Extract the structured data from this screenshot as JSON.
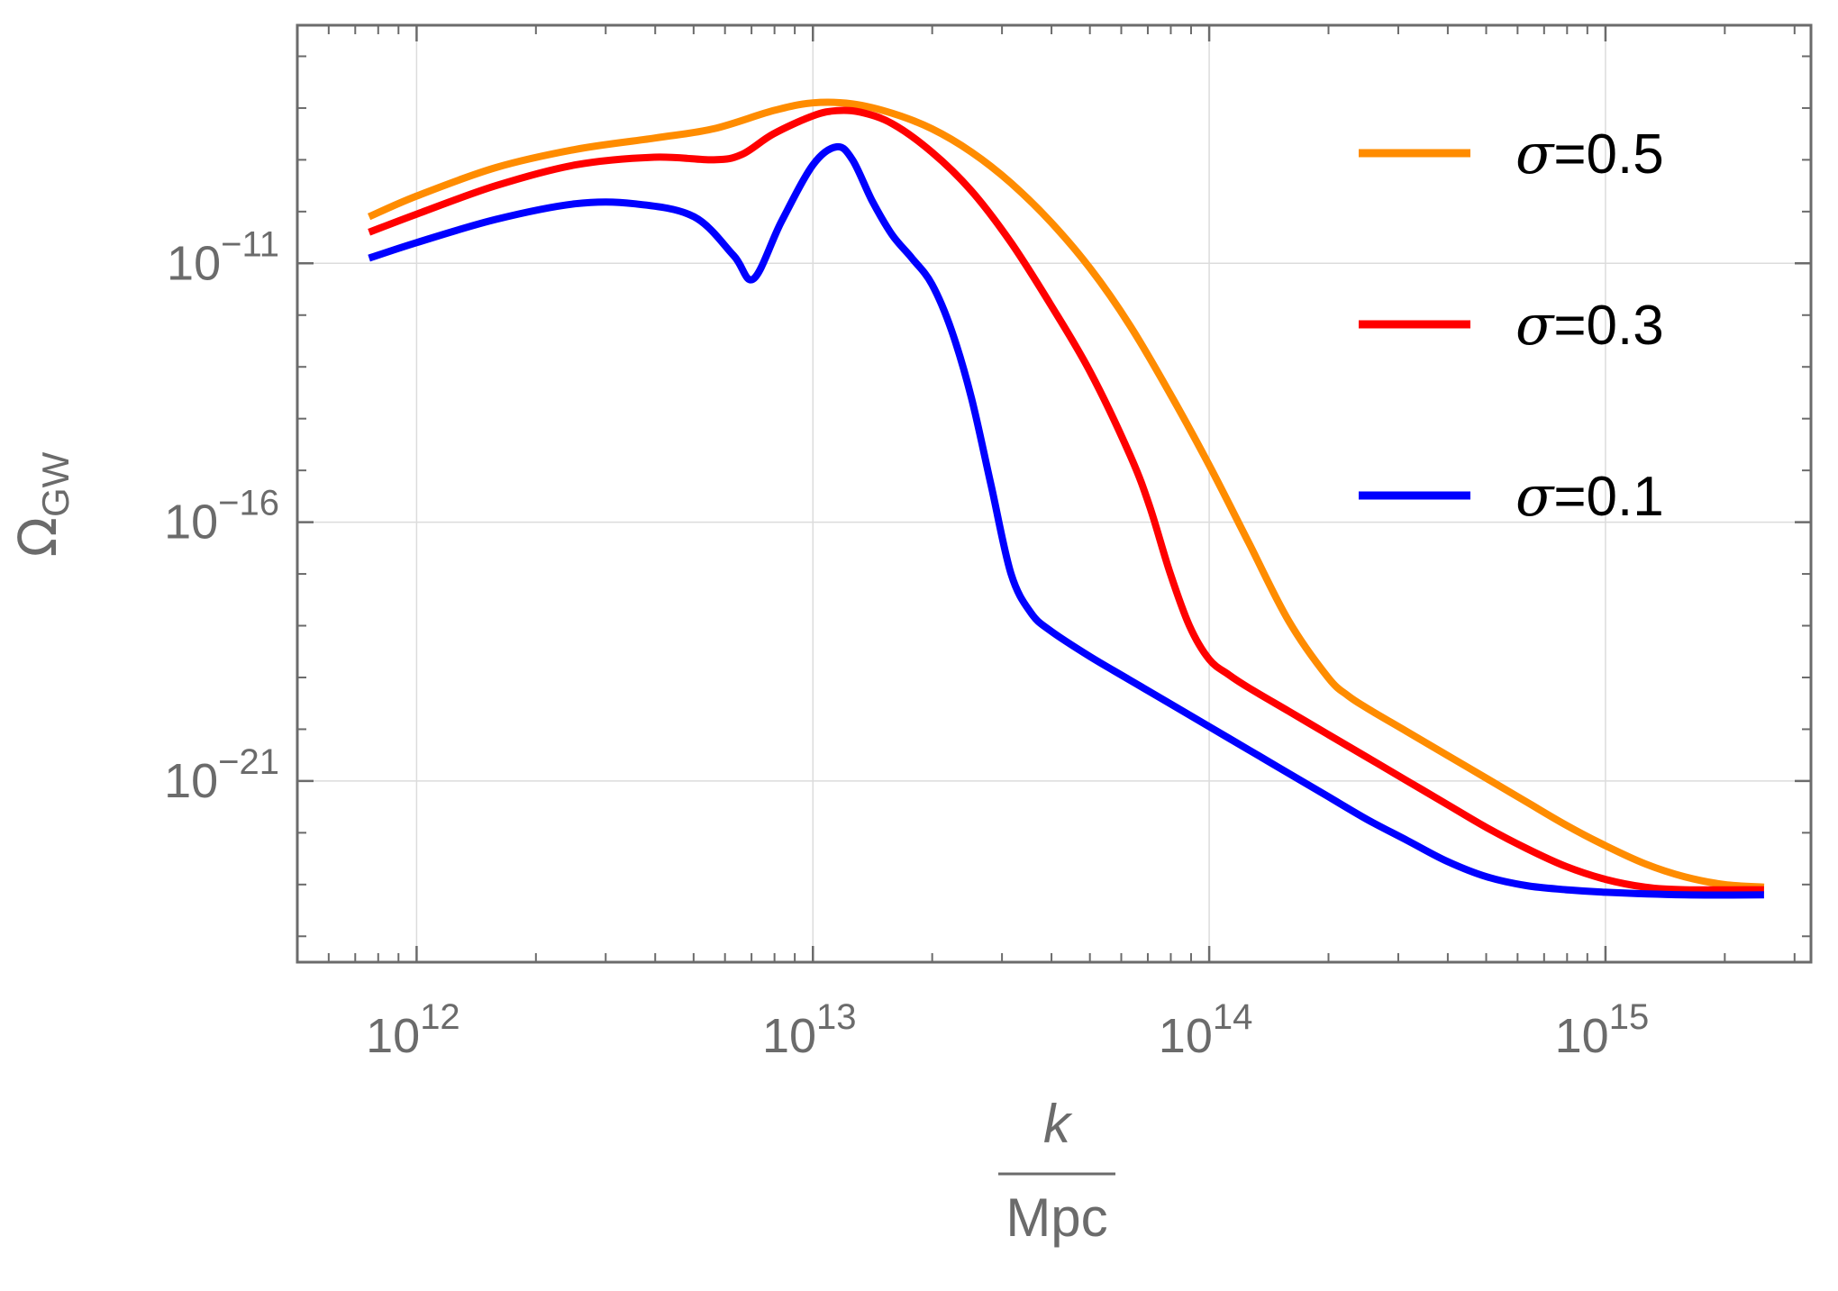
{
  "chart_data": {
    "type": "line",
    "title": "",
    "xscale": "log",
    "yscale": "log",
    "xlim": [
      500000000000.0,
      3300000000000000.0
    ],
    "ylim_log10": [
      -24.5,
      -6.4
    ],
    "xlabel": {
      "numerator": "k",
      "denominator": "Mpc"
    },
    "ylabel": {
      "main": "Ω",
      "subscript": "GW"
    },
    "x_ticks": [
      {
        "base": "10",
        "exp": "12",
        "log10": 12
      },
      {
        "base": "10",
        "exp": "13",
        "log10": 13
      },
      {
        "base": "10",
        "exp": "14",
        "log10": 14
      },
      {
        "base": "10",
        "exp": "15",
        "log10": 15
      }
    ],
    "y_ticks": [
      {
        "base": "10",
        "exp": "−11",
        "log10": -11
      },
      {
        "base": "10",
        "exp": "−16",
        "log10": -16
      },
      {
        "base": "10",
        "exp": "−21",
        "log10": -21
      }
    ],
    "grid": true,
    "legend": {
      "placement": "top-right",
      "entries": [
        {
          "symbol": "σ",
          "label": "=0.5",
          "color": "#ff8c00"
        },
        {
          "symbol": "σ",
          "label": "=0.3",
          "color": "#ff0000"
        },
        {
          "symbol": "σ",
          "label": "=0.1",
          "color": "#0000ff"
        }
      ]
    },
    "series": [
      {
        "name": "σ=0.5",
        "color": "#ff8c00",
        "points": [
          [
            11.88,
            -10.1
          ],
          [
            12.0,
            -9.7
          ],
          [
            12.2,
            -9.15
          ],
          [
            12.4,
            -8.8
          ],
          [
            12.6,
            -8.58
          ],
          [
            12.75,
            -8.4
          ],
          [
            12.9,
            -8.05
          ],
          [
            13.0,
            -7.9
          ],
          [
            13.1,
            -7.92
          ],
          [
            13.2,
            -8.1
          ],
          [
            13.3,
            -8.4
          ],
          [
            13.4,
            -8.85
          ],
          [
            13.5,
            -9.45
          ],
          [
            13.6,
            -10.2
          ],
          [
            13.7,
            -11.1
          ],
          [
            13.8,
            -12.2
          ],
          [
            13.9,
            -13.5
          ],
          [
            14.0,
            -14.9
          ],
          [
            14.1,
            -16.4
          ],
          [
            14.2,
            -17.9
          ],
          [
            14.3,
            -19.0
          ],
          [
            14.35,
            -19.35
          ],
          [
            14.4,
            -19.6
          ],
          [
            14.5,
            -20.05
          ],
          [
            14.6,
            -20.5
          ],
          [
            14.7,
            -20.95
          ],
          [
            14.8,
            -21.4
          ],
          [
            14.9,
            -21.85
          ],
          [
            15.0,
            -22.25
          ],
          [
            15.1,
            -22.6
          ],
          [
            15.2,
            -22.85
          ],
          [
            15.3,
            -23.0
          ],
          [
            15.4,
            -23.05
          ]
        ]
      },
      {
        "name": "σ=0.3",
        "color": "#ff0000",
        "points": [
          [
            11.88,
            -10.4
          ],
          [
            12.0,
            -10.05
          ],
          [
            12.2,
            -9.5
          ],
          [
            12.4,
            -9.1
          ],
          [
            12.6,
            -8.95
          ],
          [
            12.75,
            -9.0
          ],
          [
            12.82,
            -8.9
          ],
          [
            12.9,
            -8.5
          ],
          [
            13.0,
            -8.15
          ],
          [
            13.06,
            -8.05
          ],
          [
            13.12,
            -8.08
          ],
          [
            13.2,
            -8.3
          ],
          [
            13.3,
            -8.85
          ],
          [
            13.4,
            -9.6
          ],
          [
            13.5,
            -10.6
          ],
          [
            13.6,
            -11.8
          ],
          [
            13.7,
            -13.1
          ],
          [
            13.8,
            -14.7
          ],
          [
            13.85,
            -15.7
          ],
          [
            13.9,
            -16.95
          ],
          [
            13.95,
            -18.0
          ],
          [
            14.0,
            -18.65
          ],
          [
            14.05,
            -18.95
          ],
          [
            14.1,
            -19.2
          ],
          [
            14.2,
            -19.65
          ],
          [
            14.3,
            -20.1
          ],
          [
            14.4,
            -20.55
          ],
          [
            14.5,
            -21.0
          ],
          [
            14.6,
            -21.45
          ],
          [
            14.7,
            -21.9
          ],
          [
            14.8,
            -22.3
          ],
          [
            14.9,
            -22.65
          ],
          [
            15.0,
            -22.9
          ],
          [
            15.1,
            -23.05
          ],
          [
            15.2,
            -23.1
          ],
          [
            15.4,
            -23.1
          ]
        ]
      },
      {
        "name": "σ=0.1",
        "color": "#0000ff",
        "points": [
          [
            11.88,
            -10.9
          ],
          [
            12.0,
            -10.6
          ],
          [
            12.2,
            -10.15
          ],
          [
            12.4,
            -9.85
          ],
          [
            12.55,
            -9.85
          ],
          [
            12.7,
            -10.1
          ],
          [
            12.8,
            -10.85
          ],
          [
            12.85,
            -11.3
          ],
          [
            12.92,
            -10.2
          ],
          [
            13.0,
            -9.1
          ],
          [
            13.06,
            -8.75
          ],
          [
            13.1,
            -9.0
          ],
          [
            13.15,
            -9.8
          ],
          [
            13.2,
            -10.45
          ],
          [
            13.25,
            -10.9
          ],
          [
            13.3,
            -11.4
          ],
          [
            13.35,
            -12.3
          ],
          [
            13.4,
            -13.6
          ],
          [
            13.45,
            -15.3
          ],
          [
            13.5,
            -17.0
          ],
          [
            13.55,
            -17.75
          ],
          [
            13.6,
            -18.1
          ],
          [
            13.7,
            -18.6
          ],
          [
            13.8,
            -19.05
          ],
          [
            13.9,
            -19.5
          ],
          [
            14.0,
            -19.95
          ],
          [
            14.1,
            -20.4
          ],
          [
            14.2,
            -20.85
          ],
          [
            14.3,
            -21.3
          ],
          [
            14.4,
            -21.75
          ],
          [
            14.5,
            -22.15
          ],
          [
            14.6,
            -22.55
          ],
          [
            14.7,
            -22.85
          ],
          [
            14.8,
            -23.02
          ],
          [
            14.9,
            -23.1
          ],
          [
            15.0,
            -23.15
          ],
          [
            15.2,
            -23.2
          ],
          [
            15.4,
            -23.2
          ]
        ]
      }
    ]
  }
}
